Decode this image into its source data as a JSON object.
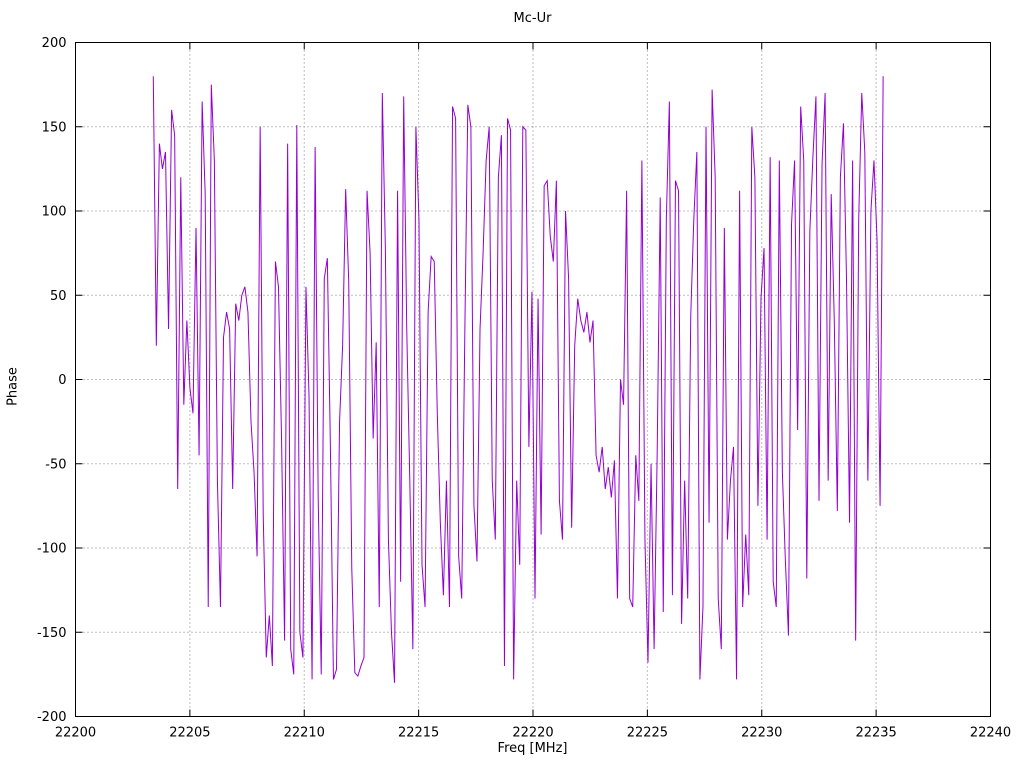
{
  "chart_data": {
    "type": "line",
    "title": "Mc-Ur",
    "xlabel": "Freq [MHz]",
    "ylabel": "Phase",
    "xlim": [
      22200,
      22240
    ],
    "ylim": [
      -200,
      200
    ],
    "xticks": [
      22200,
      22205,
      22210,
      22215,
      22220,
      22225,
      22230,
      22235,
      22240
    ],
    "yticks": [
      -200,
      -150,
      -100,
      -50,
      0,
      50,
      100,
      150,
      200
    ],
    "grid": true,
    "legend": "none",
    "line_color": "#9400d3",
    "background_color": "#ffffff",
    "x_start": 22203.4,
    "x_step": 0.1335,
    "values": [
      180,
      20,
      140,
      125,
      135,
      30,
      160,
      145,
      -65,
      120,
      -15,
      35,
      -5,
      -20,
      90,
      -45,
      165,
      110,
      -135,
      175,
      130,
      -60,
      -135,
      25,
      40,
      30,
      -65,
      45,
      35,
      50,
      55,
      40,
      -25,
      -55,
      -105,
      150,
      -80,
      -165,
      -140,
      -170,
      70,
      55,
      -35,
      -155,
      140,
      -160,
      -175,
      151,
      -150,
      -165,
      55,
      -10,
      -178,
      138,
      -70,
      -175,
      60,
      72,
      -40,
      -178,
      -172,
      -25,
      20,
      113,
      58,
      -112,
      -174,
      -176,
      -170,
      -165,
      112,
      75,
      -35,
      22,
      -135,
      170,
      78,
      -95,
      -150,
      -180,
      112,
      -120,
      168,
      30,
      -60,
      -160,
      150,
      95,
      -110,
      -135,
      40,
      73,
      70,
      -20,
      -85,
      -128,
      -60,
      -135,
      162,
      155,
      -105,
      -130,
      25,
      163,
      150,
      -75,
      -108,
      30,
      75,
      130,
      150,
      -60,
      -95,
      120,
      145,
      -170,
      155,
      148,
      -178,
      -60,
      -110,
      150,
      148,
      -40,
      52,
      -130,
      48,
      -92,
      115,
      118,
      85,
      70,
      118,
      -72,
      -95,
      100,
      60,
      -88,
      20,
      48,
      35,
      28,
      40,
      22,
      35,
      -45,
      -55,
      -40,
      -65,
      -52,
      -70,
      -48,
      -130,
      0,
      -15,
      112,
      -130,
      -135,
      -45,
      -72,
      130,
      -95,
      -168,
      -50,
      -160,
      -45,
      108,
      -138,
      95,
      165,
      -128,
      118,
      112,
      -145,
      -60,
      -130,
      38,
      95,
      135,
      -178,
      -135,
      150,
      -85,
      172,
      120,
      -130,
      -160,
      90,
      -95,
      -60,
      -40,
      -178,
      112,
      -135,
      -92,
      -128,
      150,
      120,
      -75,
      48,
      78,
      -95,
      132,
      -120,
      -135,
      130,
      -55,
      -108,
      -152,
      92,
      130,
      -30,
      162,
      130,
      -118,
      88,
      132,
      168,
      -72,
      128,
      170,
      -60,
      110,
      35,
      -78,
      120,
      152,
      60,
      -85,
      130,
      -155,
      95,
      170,
      135,
      -60,
      100,
      130,
      83,
      -75,
      180
    ]
  }
}
